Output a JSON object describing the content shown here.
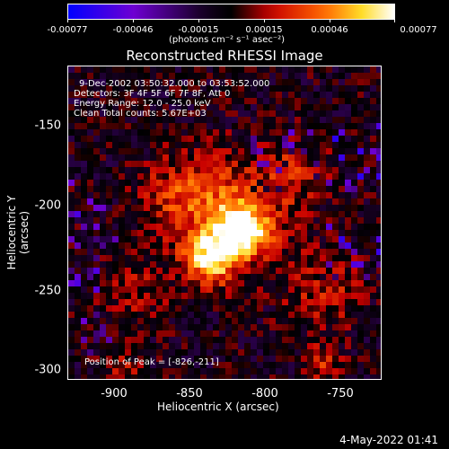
{
  "colorbar": {
    "ticks": [
      "-0.00077",
      "-0.00046",
      "-0.00015",
      "0.00015",
      "0.00046",
      "0.00077"
    ],
    "units": "(photons cm⁻² s⁻¹ asec⁻²)"
  },
  "title": "Reconstructed RHESSI Image",
  "annotations": {
    "time": "9-Dec-2002 03:50:32.000 to 03:53:52.000",
    "detectors": "Detectors: 3F 4F 5F 6F 7F 8F, Att 0",
    "energy": "Energy Range: 12.0 - 25.0 keV",
    "method": "Clean     Total counts: 5.67E+03",
    "peak": "Position of Peak = [-826,-211]"
  },
  "axes": {
    "xlabel": "Heliocentric X (arcsec)",
    "ylabel": "Heliocentric Y (arcsec)",
    "xticks": [
      "-900",
      "-850",
      "-800",
      "-750"
    ],
    "yticks": [
      "-150",
      "-200",
      "-250",
      "-300"
    ]
  },
  "footer": "4-May-2022 01:41"
}
